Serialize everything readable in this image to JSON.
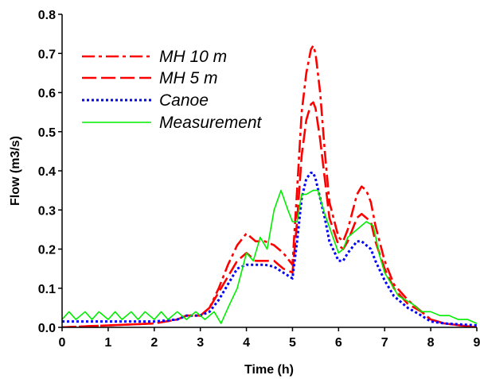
{
  "chart_data": {
    "type": "line",
    "title": "",
    "xlabel": "Time (h)",
    "ylabel": "Flow (m3/s)",
    "xlim": [
      0,
      9
    ],
    "ylim": [
      0,
      0.8
    ],
    "xticks": [
      "0",
      "1",
      "2",
      "3",
      "4",
      "5",
      "6",
      "7",
      "8",
      "9"
    ],
    "yticks": [
      "0.0",
      "0.1",
      "0.2",
      "0.3",
      "0.4",
      "0.5",
      "0.6",
      "0.7",
      "0.8"
    ],
    "grid": false,
    "legend_position": "top-left",
    "series": [
      {
        "name": "MH 10 m",
        "color": "#ff0000",
        "style": "dashdot",
        "x": [
          0,
          1.0,
          2.0,
          2.5,
          2.7,
          3.0,
          3.2,
          3.4,
          3.6,
          3.8,
          4.0,
          4.2,
          4.4,
          4.6,
          4.8,
          5.0,
          5.1,
          5.2,
          5.3,
          5.4,
          5.45,
          5.5,
          5.6,
          5.7,
          5.8,
          6.0,
          6.1,
          6.2,
          6.4,
          6.5,
          6.6,
          6.7,
          6.8,
          7.0,
          7.2,
          7.5,
          7.8,
          8.0,
          8.3,
          9.0
        ],
        "y": [
          0,
          0.005,
          0.01,
          0.02,
          0.03,
          0.03,
          0.05,
          0.1,
          0.16,
          0.21,
          0.24,
          0.22,
          0.22,
          0.21,
          0.19,
          0.16,
          0.35,
          0.55,
          0.65,
          0.71,
          0.72,
          0.7,
          0.6,
          0.45,
          0.32,
          0.23,
          0.22,
          0.25,
          0.34,
          0.36,
          0.35,
          0.32,
          0.26,
          0.17,
          0.11,
          0.07,
          0.04,
          0.02,
          0.01,
          0.0
        ]
      },
      {
        "name": "MH 5 m",
        "color": "#ff0000",
        "style": "dashed",
        "x": [
          0,
          1.0,
          2.0,
          2.5,
          2.7,
          3.0,
          3.2,
          3.4,
          3.6,
          3.8,
          4.0,
          4.2,
          4.4,
          4.6,
          4.8,
          5.0,
          5.1,
          5.2,
          5.3,
          5.4,
          5.45,
          5.5,
          5.6,
          5.7,
          5.8,
          6.0,
          6.1,
          6.2,
          6.4,
          6.5,
          6.6,
          6.7,
          6.8,
          7.0,
          7.2,
          7.5,
          7.8,
          8.0,
          8.3,
          9.0
        ],
        "y": [
          0,
          0.005,
          0.01,
          0.02,
          0.03,
          0.03,
          0.05,
          0.09,
          0.13,
          0.17,
          0.19,
          0.17,
          0.17,
          0.17,
          0.15,
          0.14,
          0.27,
          0.44,
          0.53,
          0.57,
          0.575,
          0.56,
          0.48,
          0.38,
          0.28,
          0.21,
          0.2,
          0.22,
          0.28,
          0.29,
          0.28,
          0.27,
          0.22,
          0.15,
          0.1,
          0.06,
          0.04,
          0.02,
          0.01,
          0.0
        ]
      },
      {
        "name": "Canoe",
        "color": "#0000ff",
        "style": "dotted",
        "x": [
          0,
          1.0,
          2.0,
          2.5,
          2.7,
          3.0,
          3.2,
          3.4,
          3.6,
          3.8,
          4.0,
          4.2,
          4.4,
          4.6,
          4.8,
          5.0,
          5.1,
          5.2,
          5.3,
          5.4,
          5.45,
          5.5,
          5.6,
          5.7,
          5.8,
          6.0,
          6.1,
          6.2,
          6.4,
          6.5,
          6.6,
          6.7,
          6.8,
          7.0,
          7.2,
          7.5,
          7.8,
          8.0,
          8.3,
          9.0
        ],
        "y": [
          0.015,
          0.015,
          0.015,
          0.02,
          0.03,
          0.03,
          0.04,
          0.07,
          0.11,
          0.15,
          0.16,
          0.16,
          0.16,
          0.155,
          0.14,
          0.125,
          0.22,
          0.33,
          0.38,
          0.395,
          0.395,
          0.38,
          0.33,
          0.28,
          0.22,
          0.17,
          0.17,
          0.19,
          0.22,
          0.22,
          0.21,
          0.2,
          0.17,
          0.12,
          0.08,
          0.05,
          0.03,
          0.015,
          0.01,
          0.005
        ]
      },
      {
        "name": "Measurement",
        "color": "#00ee00",
        "style": "solid",
        "x": [
          0,
          0.15,
          0.3,
          0.5,
          0.65,
          0.8,
          1.0,
          1.15,
          1.3,
          1.5,
          1.65,
          1.8,
          2.0,
          2.15,
          2.3,
          2.5,
          2.7,
          2.9,
          3.1,
          3.3,
          3.45,
          3.6,
          3.8,
          4.0,
          4.15,
          4.3,
          4.45,
          4.6,
          4.75,
          4.9,
          5.0,
          5.1,
          5.2,
          5.3,
          5.45,
          5.55,
          5.7,
          5.85,
          6.0,
          6.1,
          6.2,
          6.4,
          6.6,
          6.75,
          6.9,
          7.0,
          7.3,
          7.6,
          7.8,
          8.0,
          8.2,
          8.4,
          8.6,
          8.8,
          9.0
        ],
        "y": [
          0.02,
          0.04,
          0.02,
          0.04,
          0.02,
          0.04,
          0.02,
          0.04,
          0.02,
          0.04,
          0.02,
          0.04,
          0.02,
          0.04,
          0.02,
          0.04,
          0.02,
          0.04,
          0.02,
          0.04,
          0.01,
          0.05,
          0.1,
          0.19,
          0.17,
          0.23,
          0.2,
          0.3,
          0.35,
          0.3,
          0.27,
          0.27,
          0.34,
          0.34,
          0.35,
          0.35,
          0.29,
          0.24,
          0.19,
          0.2,
          0.23,
          0.25,
          0.27,
          0.26,
          0.18,
          0.14,
          0.08,
          0.06,
          0.04,
          0.04,
          0.03,
          0.03,
          0.02,
          0.02,
          0.01
        ]
      }
    ]
  }
}
